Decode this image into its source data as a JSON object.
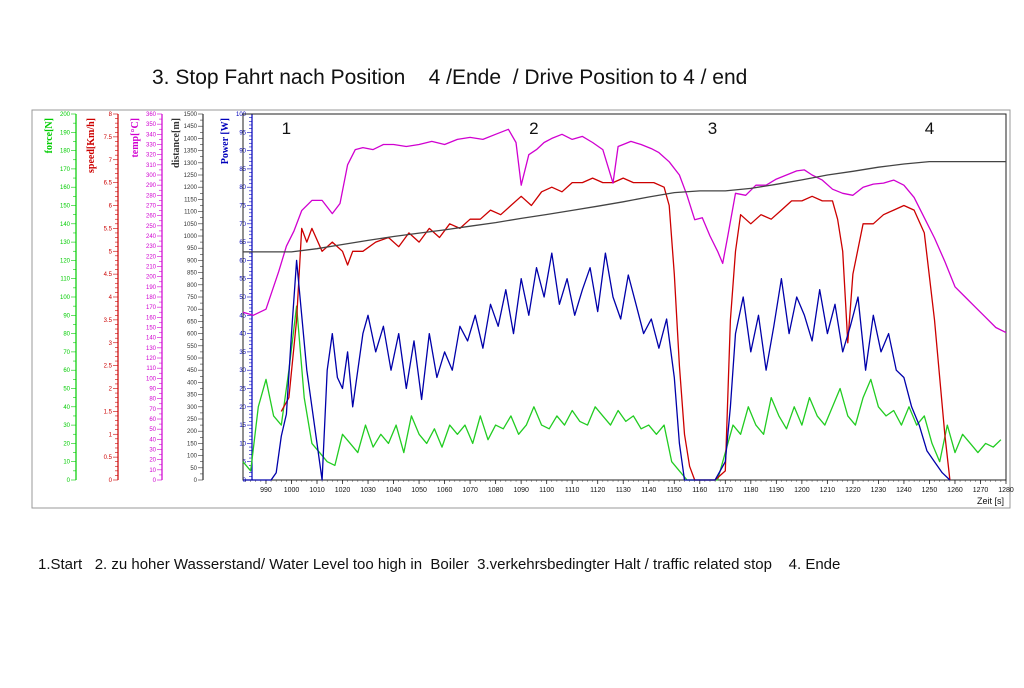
{
  "page": {
    "title": "3. Stop Fahrt nach Position    4 /Ende  / Drive Position to 4 / end",
    "caption": "1.Start   2. zu hoher Wasserstand/ Water Level too high in  Boiler  3.verkehrsbedingter Halt / traffic related stop    4. Ende"
  },
  "chart_data": {
    "type": "line",
    "xlabel": "Zeit [s]",
    "xlim": [
      981,
      1280
    ],
    "xticks": [
      990,
      1000,
      1010,
      1020,
      1030,
      1040,
      1050,
      1060,
      1070,
      1080,
      1090,
      1100,
      1110,
      1120,
      1130,
      1140,
      1150,
      1160,
      1170,
      1180,
      1190,
      1200,
      1210,
      1220,
      1230,
      1240,
      1250,
      1260,
      1270,
      1280
    ],
    "grid": false,
    "markers": [
      {
        "label": "1",
        "x": 998
      },
      {
        "label": "2",
        "x": 1095
      },
      {
        "label": "3",
        "x": 1165
      },
      {
        "label": "4",
        "x": 1250
      }
    ],
    "axes": [
      {
        "id": "force",
        "label": "force[N]",
        "color": "#00cc00",
        "min": 0,
        "max": 200,
        "step": 5,
        "label_every": 10
      },
      {
        "id": "speed",
        "label": "speed[Km/h]",
        "color": "#cc0000",
        "min": 0,
        "max": 8,
        "step": 0.1,
        "label_every": 0.5
      },
      {
        "id": "temp",
        "label": "temp[°C]",
        "color": "#d000d0",
        "min": 0,
        "max": 360,
        "step": 5,
        "label_every": 10
      },
      {
        "id": "distance",
        "label": "distance[m]",
        "color": "#333333",
        "min": 0,
        "max": 1500,
        "step": 25,
        "label_every": 50
      },
      {
        "id": "power",
        "label": "Power [W]",
        "color": "#0000bb",
        "min": 0,
        "max": 100,
        "step": 1,
        "label_every": 5
      }
    ],
    "series": [
      {
        "name": "force",
        "axis": "force",
        "color": "#22cc22",
        "x": [
          981,
          984,
          987,
          990,
          993,
          996,
          999,
          1002,
          1005,
          1008,
          1011,
          1014,
          1017,
          1020,
          1023,
          1026,
          1029,
          1032,
          1035,
          1038,
          1041,
          1044,
          1047,
          1050,
          1053,
          1056,
          1059,
          1062,
          1065,
          1068,
          1071,
          1074,
          1077,
          1080,
          1083,
          1086,
          1089,
          1092,
          1095,
          1098,
          1101,
          1104,
          1107,
          1110,
          1113,
          1116,
          1119,
          1122,
          1125,
          1128,
          1131,
          1134,
          1137,
          1140,
          1143,
          1146,
          1149,
          1152,
          1155,
          1158,
          1161,
          1164,
          1167,
          1170,
          1173,
          1176,
          1179,
          1182,
          1185,
          1188,
          1191,
          1194,
          1197,
          1200,
          1203,
          1206,
          1209,
          1212,
          1215,
          1218,
          1221,
          1224,
          1227,
          1230,
          1233,
          1236,
          1239,
          1242,
          1245,
          1248,
          1251,
          1254,
          1257,
          1260,
          1263,
          1266,
          1269,
          1272,
          1275,
          1278
        ],
        "values": [
          10,
          5,
          40,
          55,
          35,
          30,
          60,
          95,
          45,
          20,
          15,
          10,
          8,
          25,
          20,
          15,
          30,
          18,
          25,
          20,
          30,
          15,
          35,
          25,
          20,
          28,
          18,
          30,
          25,
          30,
          20,
          35,
          22,
          30,
          28,
          35,
          25,
          30,
          40,
          30,
          28,
          35,
          30,
          38,
          32,
          30,
          40,
          35,
          30,
          38,
          32,
          35,
          28,
          30,
          25,
          30,
          10,
          5,
          0,
          0,
          0,
          0,
          0,
          15,
          30,
          25,
          40,
          30,
          25,
          45,
          35,
          28,
          40,
          30,
          45,
          35,
          30,
          40,
          50,
          35,
          30,
          45,
          55,
          40,
          35,
          38,
          30,
          40,
          30,
          35,
          20,
          10,
          30,
          15,
          25,
          20,
          15,
          20,
          18,
          22
        ]
      },
      {
        "name": "speed",
        "axis": "speed",
        "color": "#cc0000",
        "x": [
          996,
          999,
          1002,
          1004,
          1006,
          1008,
          1012,
          1016,
          1020,
          1022,
          1024,
          1028,
          1033,
          1038,
          1042,
          1046,
          1050,
          1054,
          1058,
          1062,
          1066,
          1070,
          1074,
          1078,
          1082,
          1086,
          1090,
          1094,
          1098,
          1102,
          1106,
          1110,
          1114,
          1118,
          1122,
          1126,
          1130,
          1134,
          1138,
          1142,
          1146,
          1148,
          1150,
          1152,
          1154,
          1156,
          1158,
          1160,
          1166,
          1170,
          1172,
          1174,
          1176,
          1180,
          1184,
          1188,
          1192,
          1196,
          1200,
          1204,
          1208,
          1212,
          1214,
          1216,
          1218,
          1220,
          1224,
          1228,
          1232,
          1236,
          1240,
          1244,
          1248,
          1252,
          1256,
          1258
        ],
        "values": [
          1.5,
          1.8,
          3.5,
          5.5,
          5.2,
          5.5,
          5.0,
          5.2,
          5.0,
          4.7,
          5.0,
          5.0,
          5.2,
          5.3,
          5.1,
          5.4,
          5.2,
          5.5,
          5.3,
          5.6,
          5.5,
          5.7,
          5.7,
          5.9,
          5.8,
          6.0,
          6.2,
          6.0,
          6.3,
          6.4,
          6.3,
          6.5,
          6.5,
          6.6,
          6.5,
          6.5,
          6.6,
          6.5,
          6.5,
          6.5,
          6.4,
          6.0,
          4.5,
          2.5,
          1.0,
          0.3,
          0.0,
          0.0,
          0.0,
          0.2,
          3.5,
          5.0,
          5.8,
          5.6,
          5.8,
          5.7,
          5.9,
          6.1,
          6.1,
          6.2,
          6.1,
          6.1,
          5.7,
          5.0,
          3.0,
          4.5,
          5.6,
          5.6,
          5.8,
          5.9,
          6.0,
          5.9,
          5.4,
          3.5,
          1.0,
          0.0
        ]
      },
      {
        "name": "temp",
        "axis": "temp",
        "color": "#d000d0",
        "x": [
          981,
          985,
          990,
          995,
          998,
          1001,
          1004,
          1008,
          1012,
          1016,
          1019,
          1022,
          1025,
          1028,
          1032,
          1036,
          1040,
          1045,
          1050,
          1055,
          1060,
          1065,
          1070,
          1075,
          1080,
          1085,
          1088,
          1090,
          1093,
          1096,
          1099,
          1102,
          1106,
          1110,
          1114,
          1118,
          1122,
          1126,
          1128,
          1130,
          1133,
          1137,
          1141,
          1144,
          1148,
          1152,
          1155,
          1158,
          1161,
          1164,
          1167,
          1169,
          1171,
          1174,
          1178,
          1182,
          1186,
          1190,
          1194,
          1198,
          1201,
          1204,
          1208,
          1212,
          1216,
          1220,
          1224,
          1228,
          1232,
          1236,
          1240,
          1244,
          1248,
          1252,
          1256,
          1260,
          1264,
          1268,
          1272,
          1276,
          1280
        ],
        "values": [
          165,
          162,
          168,
          205,
          230,
          245,
          265,
          275,
          275,
          262,
          272,
          310,
          325,
          327,
          325,
          330,
          330,
          328,
          330,
          333,
          330,
          335,
          337,
          335,
          340,
          345,
          332,
          290,
          320,
          325,
          332,
          336,
          340,
          335,
          338,
          332,
          325,
          292,
          328,
          330,
          333,
          330,
          326,
          322,
          313,
          300,
          280,
          256,
          258,
          240,
          225,
          213,
          240,
          282,
          280,
          290,
          290,
          296,
          300,
          304,
          305,
          300,
          295,
          286,
          282,
          280,
          288,
          291,
          292,
          295,
          290,
          278,
          258,
          238,
          215,
          190,
          180,
          170,
          160,
          150,
          145
        ]
      },
      {
        "name": "distance",
        "axis": "distance",
        "color": "#444444",
        "x": [
          981,
          990,
          1000,
          1010,
          1020,
          1030,
          1040,
          1050,
          1060,
          1070,
          1080,
          1090,
          1100,
          1110,
          1120,
          1130,
          1140,
          1150,
          1160,
          1170,
          1180,
          1190,
          1200,
          1210,
          1220,
          1230,
          1240,
          1250,
          1260,
          1270,
          1280
        ],
        "values": [
          935,
          935,
          935,
          948,
          965,
          982,
          998,
          1012,
          1025,
          1040,
          1055,
          1072,
          1088,
          1105,
          1122,
          1140,
          1160,
          1178,
          1185,
          1185,
          1195,
          1212,
          1230,
          1250,
          1265,
          1282,
          1295,
          1305,
          1305,
          1305,
          1305
        ]
      },
      {
        "name": "Power",
        "axis": "power",
        "color": "#0000aa",
        "x": [
          981,
          988,
          990,
          992,
          994,
          996,
          998,
          1000,
          1002,
          1004,
          1006,
          1008,
          1010,
          1012,
          1014,
          1016,
          1018,
          1020,
          1022,
          1024,
          1026,
          1028,
          1030,
          1033,
          1036,
          1039,
          1042,
          1045,
          1048,
          1051,
          1054,
          1057,
          1060,
          1063,
          1066,
          1069,
          1072,
          1075,
          1078,
          1081,
          1084,
          1087,
          1090,
          1093,
          1096,
          1099,
          1102,
          1105,
          1108,
          1111,
          1114,
          1117,
          1120,
          1123,
          1126,
          1129,
          1132,
          1135,
          1138,
          1141,
          1144,
          1147,
          1150,
          1152,
          1154,
          1156,
          1160,
          1166,
          1170,
          1172,
          1174,
          1177,
          1180,
          1183,
          1186,
          1189,
          1192,
          1195,
          1198,
          1201,
          1204,
          1207,
          1210,
          1213,
          1216,
          1219,
          1222,
          1225,
          1228,
          1231,
          1234,
          1237,
          1240,
          1243,
          1246,
          1249,
          1252,
          1255,
          1258
        ],
        "values": [
          0,
          0,
          0,
          0,
          2,
          12,
          18,
          40,
          60,
          45,
          30,
          20,
          10,
          0,
          30,
          40,
          28,
          25,
          35,
          20,
          30,
          40,
          45,
          35,
          42,
          30,
          40,
          25,
          38,
          22,
          40,
          28,
          35,
          30,
          42,
          38,
          45,
          36,
          48,
          42,
          52,
          40,
          55,
          45,
          58,
          50,
          62,
          48,
          55,
          45,
          52,
          58,
          46,
          62,
          50,
          44,
          56,
          48,
          40,
          44,
          36,
          44,
          28,
          10,
          0,
          0,
          0,
          0,
          5,
          20,
          40,
          50,
          35,
          45,
          30,
          42,
          55,
          40,
          50,
          45,
          38,
          52,
          40,
          48,
          35,
          42,
          50,
          30,
          45,
          35,
          40,
          30,
          28,
          20,
          15,
          8,
          5,
          2,
          0
        ]
      }
    ]
  }
}
